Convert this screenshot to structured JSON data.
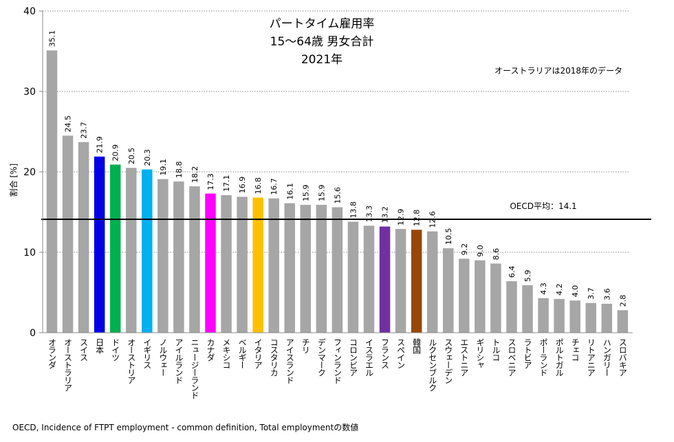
{
  "chart_data": {
    "type": "bar",
    "title": [
      "パートタイム雇用率",
      "15～64歳 男女合計",
      "2021年"
    ],
    "annotation": "オーストラリアは2018年のデータ",
    "ylabel": "割合 [%]",
    "xlabel": "",
    "ylim": [
      0,
      40
    ],
    "yticks": [
      0,
      10,
      20,
      30,
      40
    ],
    "grid": true,
    "reference_line": {
      "label": "OECD平均：14.1",
      "value": 14.1
    },
    "source": "OECD, Incidence of FTPT employment - common definition, Total employmentの数値",
    "categories": [
      "オランダ",
      "オーストラリア",
      "スイス",
      "日本",
      "ドイツ",
      "オーストリア",
      "イギリス",
      "ノルウェー",
      "アイルランド",
      "ニュージーランド",
      "カナダ",
      "メキシコ",
      "ベルギー",
      "イタリア",
      "コスタリカ",
      "アイスランド",
      "チリ",
      "デンマーク",
      "フィンランド",
      "コロンビア",
      "イスラエル",
      "フランス",
      "スペイン",
      "韓国",
      "ルクセンブルク",
      "スウェーデン",
      "エストニア",
      "ギリシャ",
      "トルコ",
      "スロベニア",
      "ラトビア",
      "ポーランド",
      "ポルトガル",
      "チェコ",
      "リトアニア",
      "ハンガリー",
      "スロバキア"
    ],
    "values": [
      35.1,
      24.5,
      23.7,
      21.9,
      20.9,
      20.5,
      20.3,
      19.1,
      18.8,
      18.2,
      17.3,
      17.1,
      16.9,
      16.8,
      16.7,
      16.1,
      15.9,
      15.9,
      15.6,
      13.8,
      13.3,
      13.2,
      12.9,
      12.8,
      12.6,
      10.5,
      9.2,
      9.0,
      8.6,
      6.4,
      5.9,
      4.3,
      4.2,
      4.0,
      3.7,
      3.6,
      2.8
    ],
    "default_color": "#a6a6a6",
    "highlight_colors": {
      "日本": "#0000e6",
      "ドイツ": "#00b050",
      "イギリス": "#00b0f0",
      "カナダ": "#ff00ff",
      "イタリア": "#ffc000",
      "フランス": "#7030a0",
      "韓国": "#974706"
    }
  }
}
